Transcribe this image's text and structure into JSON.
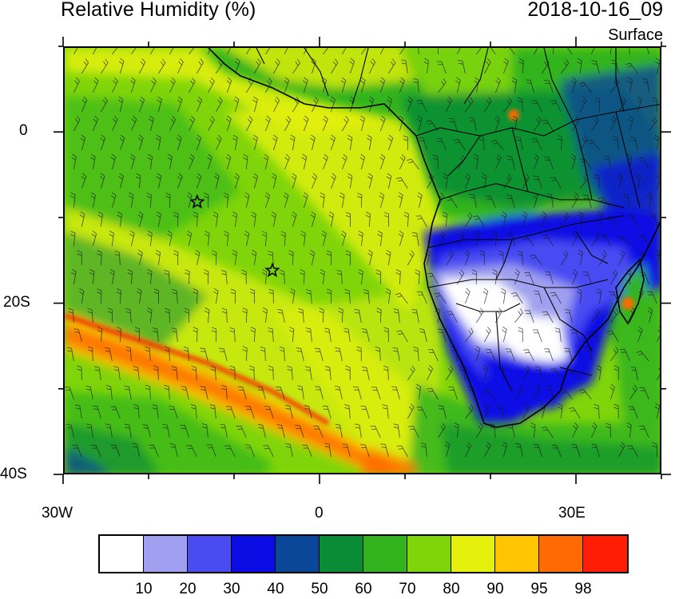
{
  "header": {
    "title": "Relative Humidity (%)",
    "datetime": "2018-10-16_09",
    "level": "Surface"
  },
  "map": {
    "x_ticks": [
      "30W",
      "0",
      "30E"
    ],
    "y_ticks": [
      "0",
      "20S",
      "40S"
    ],
    "lon_range": [
      -30,
      40
    ],
    "lat_range": [
      10,
      -40
    ],
    "markers": [
      {
        "lon": -14.5,
        "lat": -8
      },
      {
        "lon": -5.7,
        "lat": -16
      }
    ]
  },
  "colorbar": {
    "labels": [
      "10",
      "20",
      "30",
      "40",
      "50",
      "60",
      "70",
      "80",
      "90",
      "95",
      "98"
    ],
    "colors": [
      "#ffffff",
      "#a0a0f0",
      "#4a4cf2",
      "#0b0be4",
      "#0a4799",
      "#0a8c36",
      "#33b41e",
      "#80d50a",
      "#e5f00d",
      "#ffc503",
      "#ff6a02",
      "#ff1e05"
    ]
  }
}
